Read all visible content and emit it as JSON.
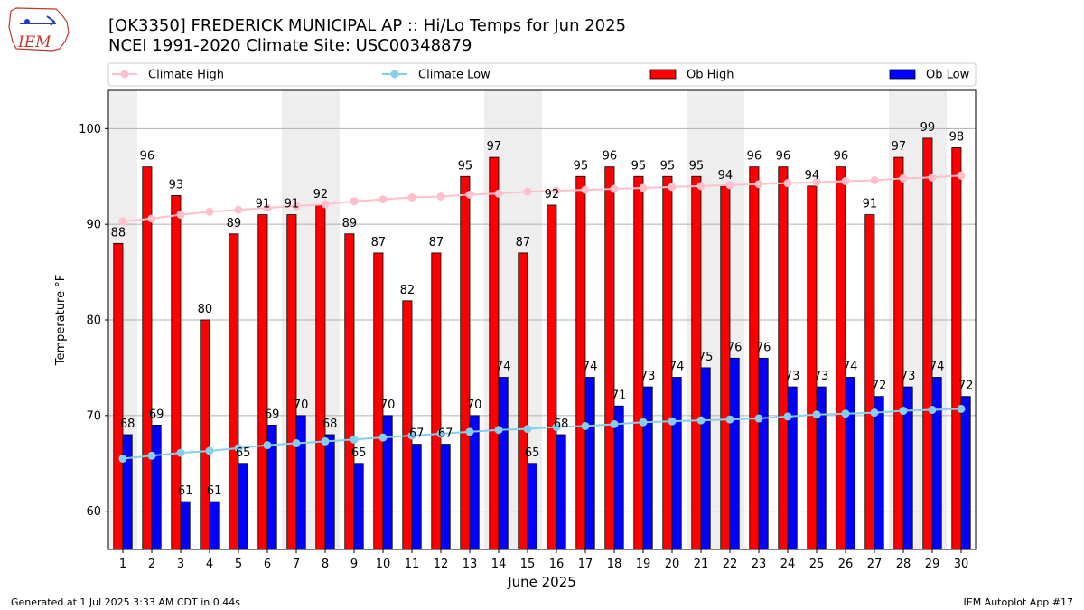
{
  "header": {
    "logo_text": "IEM",
    "title_line1": "[OK3350] FREDERICK MUNICIPAL AP :: Hi/Lo Temps for Jun 2025",
    "title_line2": "NCEI 1991-2020 Climate Site: USC00348879"
  },
  "footer": {
    "left": "Generated at 1 Jul 2025 3:33 AM CDT in 0.44s",
    "right": "IEM Autoplot App #17"
  },
  "colors": {
    "climate_high": "#ffc0cb",
    "climate_low": "#87ceeb",
    "ob_high": "#ff0000",
    "ob_low": "#0000ff",
    "weekend_shade": "#eeeeee",
    "grid": "#b0b0b0"
  },
  "chart_data": {
    "type": "bar",
    "xlabel": "June 2025",
    "ylabel": "Temperature °F",
    "ylim": [
      56,
      104
    ],
    "yticks": [
      60,
      70,
      80,
      90,
      100
    ],
    "grid": "horizontal",
    "legend_position": "top",
    "categories": [
      "1",
      "2",
      "3",
      "4",
      "5",
      "6",
      "7",
      "8",
      "9",
      "10",
      "11",
      "12",
      "13",
      "14",
      "15",
      "16",
      "17",
      "18",
      "19",
      "20",
      "21",
      "22",
      "23",
      "24",
      "25",
      "26",
      "27",
      "28",
      "29",
      "30"
    ],
    "shaded_days": [
      1,
      7,
      8,
      14,
      15,
      21,
      22,
      28,
      29
    ],
    "series": [
      {
        "name": "Climate High",
        "kind": "line",
        "values": [
          90.3,
          90.6,
          91.0,
          91.3,
          91.5,
          91.7,
          91.9,
          92.1,
          92.4,
          92.6,
          92.8,
          92.9,
          93.1,
          93.2,
          93.4,
          93.5,
          93.6,
          93.7,
          93.8,
          93.9,
          94.0,
          94.1,
          94.2,
          94.3,
          94.4,
          94.5,
          94.6,
          94.8,
          94.9,
          95.1
        ]
      },
      {
        "name": "Climate Low",
        "kind": "line",
        "values": [
          65.5,
          65.8,
          66.1,
          66.3,
          66.6,
          66.9,
          67.1,
          67.3,
          67.5,
          67.7,
          67.9,
          68.1,
          68.3,
          68.5,
          68.6,
          68.8,
          68.9,
          69.1,
          69.3,
          69.4,
          69.5,
          69.6,
          69.7,
          69.9,
          70.1,
          70.2,
          70.3,
          70.5,
          70.6,
          70.7
        ]
      },
      {
        "name": "Ob High",
        "kind": "bar",
        "values": [
          88,
          96,
          93,
          80,
          89,
          91,
          91,
          92,
          89,
          87,
          82,
          87,
          95,
          97,
          87,
          92,
          95,
          96,
          95,
          95,
          95,
          94,
          96,
          96,
          94,
          96,
          91,
          97,
          99,
          98
        ]
      },
      {
        "name": "Ob Low",
        "kind": "bar",
        "values": [
          68,
          69,
          61,
          61,
          65,
          69,
          70,
          68,
          65,
          70,
          67,
          67,
          70,
          74,
          65,
          68,
          74,
          71,
          73,
          74,
          75,
          76,
          76,
          73,
          73,
          74,
          72,
          73,
          74,
          72
        ]
      }
    ]
  }
}
